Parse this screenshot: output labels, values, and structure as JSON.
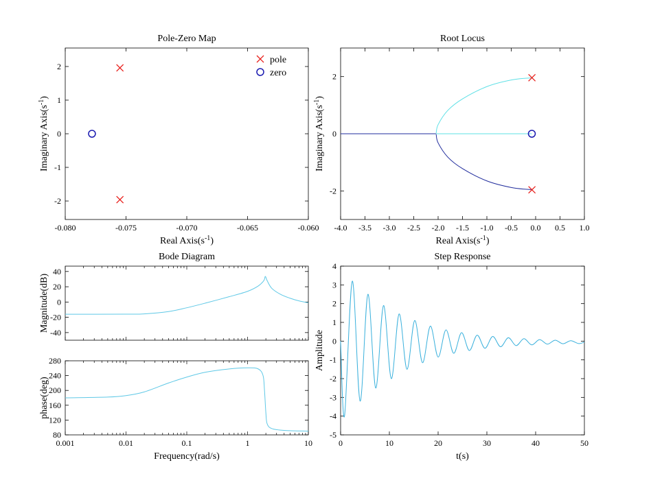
{
  "chart_data": [
    {
      "type": "scatter",
      "title": "Pole-Zero Map",
      "xlabel": "Real Axis(s⁻¹)",
      "ylabel": "Imaginary Axis(s⁻¹)",
      "xlim": [
        -0.08,
        -0.06
      ],
      "ylim": [
        -2.55,
        2.55
      ],
      "xticks": [
        -0.08,
        -0.075,
        -0.07,
        -0.065,
        -0.06
      ],
      "xtick_labels": [
        "-0.080",
        "-0.075",
        "-0.070",
        "-0.065",
        "-0.060"
      ],
      "yticks": [
        -2,
        -1,
        0,
        1,
        2
      ],
      "legend_position": "top-right",
      "legend": [
        {
          "name": "pole",
          "marker": "x",
          "color": "#e8201c"
        },
        {
          "name": "zero",
          "marker": "o",
          "color": "#1a1ab0"
        }
      ],
      "series": [
        {
          "name": "pole",
          "marker": "x",
          "color": "#e8201c",
          "points": [
            {
              "x": -0.0755,
              "y": 1.96
            },
            {
              "x": -0.0755,
              "y": -1.96
            }
          ]
        },
        {
          "name": "zero",
          "marker": "o",
          "color": "#1a1ab0",
          "points": [
            {
              "x": -0.0778,
              "y": 0.0
            }
          ]
        }
      ]
    },
    {
      "type": "line",
      "title": "Root Locus",
      "xlabel": "Real Axis(s⁻¹)",
      "ylabel": "Imaginary Axis(s⁻¹)",
      "xlim": [
        -4.0,
        1.0
      ],
      "ylim": [
        -3.0,
        3.0
      ],
      "xticks": [
        -4.0,
        -3.5,
        -3.0,
        -2.5,
        -2.0,
        -1.5,
        -1.0,
        -0.5,
        0.0,
        0.5,
        1.0
      ],
      "xtick_labels": [
        "-4.0",
        "-3.5",
        "-3.0",
        "-2.5",
        "-2.0",
        "-1.5",
        "-1.0",
        "-0.5",
        "0.0",
        "0.5",
        "1.0"
      ],
      "yticks": [
        -2,
        0,
        2
      ],
      "series": [
        {
          "color": "#5ee0e6",
          "points": [
            {
              "x": -0.076,
              "y": 1.96
            },
            {
              "x": -0.5,
              "y": 1.88
            },
            {
              "x": -1.0,
              "y": 1.65
            },
            {
              "x": -1.5,
              "y": 1.22
            },
            {
              "x": -1.8,
              "y": 0.82
            },
            {
              "x": -2.0,
              "y": 0.32
            },
            {
              "x": -2.04,
              "y": 0.02
            }
          ]
        },
        {
          "color": "#1f2b9c",
          "points": [
            {
              "x": -0.076,
              "y": -1.96
            },
            {
              "x": -0.5,
              "y": -1.88
            },
            {
              "x": -1.0,
              "y": -1.65
            },
            {
              "x": -1.5,
              "y": -1.22
            },
            {
              "x": -1.8,
              "y": -0.82
            },
            {
              "x": -2.0,
              "y": -0.32
            },
            {
              "x": -2.04,
              "y": -0.02
            }
          ]
        },
        {
          "color": "#5ee0e6",
          "points": [
            {
              "x": -2.04,
              "y": 0.0
            },
            {
              "x": -0.078,
              "y": 0.0
            }
          ]
        },
        {
          "color": "#1f2b9c",
          "points": [
            {
              "x": -4.0,
              "y": 0.0
            },
            {
              "x": -2.04,
              "y": 0.0
            }
          ]
        }
      ],
      "markers": [
        {
          "marker": "x",
          "color": "#e8201c",
          "points": [
            {
              "x": -0.076,
              "y": 1.96
            },
            {
              "x": -0.076,
              "y": -1.96
            }
          ]
        },
        {
          "marker": "o",
          "color": "#1a1ab0",
          "points": [
            {
              "x": -0.078,
              "y": 0.0
            }
          ]
        }
      ]
    },
    {
      "type": "line",
      "title": "Bode Diagram",
      "ylabel": "Magnitude(dB)",
      "xscale": "log",
      "xlim": [
        0.001,
        10
      ],
      "ylim": [
        -50,
        47
      ],
      "yticks": [
        -40,
        -20,
        0,
        20,
        40
      ],
      "color": "#5ec8e6",
      "series": [
        {
          "points": [
            {
              "x": 0.001,
              "y": -16.0
            },
            {
              "x": 0.01,
              "y": -15.9
            },
            {
              "x": 0.02,
              "y": -15.5
            },
            {
              "x": 0.05,
              "y": -12.5
            },
            {
              "x": 0.1,
              "y": -7.5
            },
            {
              "x": 0.2,
              "y": -1.5
            },
            {
              "x": 0.5,
              "y": 7.0
            },
            {
              "x": 1.0,
              "y": 14.0
            },
            {
              "x": 1.5,
              "y": 21.0
            },
            {
              "x": 1.85,
              "y": 28.0
            },
            {
              "x": 1.96,
              "y": 33.5
            },
            {
              "x": 2.1,
              "y": 28.0
            },
            {
              "x": 2.5,
              "y": 18.0
            },
            {
              "x": 3.5,
              "y": 10.0
            },
            {
              "x": 5.0,
              "y": 5.0
            },
            {
              "x": 7.0,
              "y": 1.5
            },
            {
              "x": 10.0,
              "y": -1.0
            }
          ]
        }
      ]
    },
    {
      "type": "line",
      "xlabel": "Frequency(rad/s)",
      "ylabel": "phase(deg)",
      "xscale": "log",
      "xlim": [
        0.001,
        10
      ],
      "ylim": [
        80,
        280
      ],
      "xticks": [
        0.001,
        0.01,
        0.1,
        1,
        10
      ],
      "xtick_labels": [
        "0.001",
        "0.01",
        "0.1",
        "1",
        "10"
      ],
      "yticks": [
        80,
        120,
        160,
        200,
        240,
        280
      ],
      "color": "#5ec8e6",
      "series": [
        {
          "points": [
            {
              "x": 0.001,
              "y": 180.0
            },
            {
              "x": 0.005,
              "y": 182.0
            },
            {
              "x": 0.01,
              "y": 186.0
            },
            {
              "x": 0.02,
              "y": 196.0
            },
            {
              "x": 0.05,
              "y": 220.0
            },
            {
              "x": 0.1,
              "y": 236.0
            },
            {
              "x": 0.2,
              "y": 249.0
            },
            {
              "x": 0.5,
              "y": 258.0
            },
            {
              "x": 1.0,
              "y": 261.0
            },
            {
              "x": 1.5,
              "y": 258.0
            },
            {
              "x": 1.8,
              "y": 240.0
            },
            {
              "x": 1.9,
              "y": 200.0
            },
            {
              "x": 2.0,
              "y": 140.0
            },
            {
              "x": 2.1,
              "y": 110.0
            },
            {
              "x": 2.5,
              "y": 97.0
            },
            {
              "x": 4.0,
              "y": 92.0
            },
            {
              "x": 10.0,
              "y": 90.0
            }
          ]
        }
      ]
    },
    {
      "type": "line",
      "title": "Step Response",
      "xlabel": "t(s)",
      "ylabel": "Amplitude",
      "xlim": [
        0,
        50
      ],
      "ylim": [
        -5,
        4
      ],
      "xticks": [
        0,
        10,
        20,
        30,
        40,
        50
      ],
      "yticks": [
        -5,
        -4,
        -3,
        -2,
        -1,
        0,
        1,
        2,
        3,
        4
      ],
      "color": "#39b0dc",
      "series": [
        {
          "points": [
            {
              "x": 0.0,
              "y": 0.0
            },
            {
              "x": 0.8,
              "y": -4.0
            },
            {
              "x": 2.4,
              "y": 3.2
            },
            {
              "x": 4.0,
              "y": -3.2
            },
            {
              "x": 5.6,
              "y": 2.5
            },
            {
              "x": 7.2,
              "y": -2.5
            },
            {
              "x": 8.8,
              "y": 1.9
            },
            {
              "x": 10.4,
              "y": -2.0
            },
            {
              "x": 12.0,
              "y": 1.45
            },
            {
              "x": 13.6,
              "y": -1.5
            },
            {
              "x": 15.2,
              "y": 1.1
            },
            {
              "x": 16.8,
              "y": -1.15
            },
            {
              "x": 18.4,
              "y": 0.8
            },
            {
              "x": 20.0,
              "y": -0.85
            },
            {
              "x": 21.6,
              "y": 0.6
            },
            {
              "x": 23.2,
              "y": -0.65
            },
            {
              "x": 24.8,
              "y": 0.45
            },
            {
              "x": 26.4,
              "y": -0.5
            },
            {
              "x": 28.0,
              "y": 0.32
            },
            {
              "x": 29.6,
              "y": -0.38
            },
            {
              "x": 31.2,
              "y": 0.25
            },
            {
              "x": 32.8,
              "y": -0.3
            },
            {
              "x": 34.4,
              "y": 0.18
            },
            {
              "x": 36.0,
              "y": -0.24
            },
            {
              "x": 37.6,
              "y": 0.13
            },
            {
              "x": 39.2,
              "y": -0.2
            },
            {
              "x": 40.8,
              "y": 0.08
            },
            {
              "x": 42.4,
              "y": -0.16
            },
            {
              "x": 44.0,
              "y": 0.05
            },
            {
              "x": 45.6,
              "y": -0.14
            },
            {
              "x": 47.2,
              "y": 0.02
            },
            {
              "x": 48.8,
              "y": -0.13
            },
            {
              "x": 50.0,
              "y": -0.05
            }
          ]
        }
      ]
    }
  ]
}
